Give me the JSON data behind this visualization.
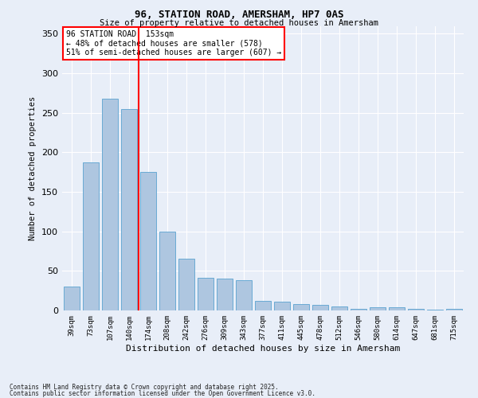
{
  "title1": "96, STATION ROAD, AMERSHAM, HP7 0AS",
  "title2": "Size of property relative to detached houses in Amersham",
  "xlabel": "Distribution of detached houses by size in Amersham",
  "ylabel": "Number of detached properties",
  "categories": [
    "39sqm",
    "73sqm",
    "107sqm",
    "140sqm",
    "174sqm",
    "208sqm",
    "242sqm",
    "276sqm",
    "309sqm",
    "343sqm",
    "377sqm",
    "411sqm",
    "445sqm",
    "478sqm",
    "512sqm",
    "546sqm",
    "580sqm",
    "614sqm",
    "647sqm",
    "681sqm",
    "715sqm"
  ],
  "values": [
    30,
    187,
    268,
    255,
    175,
    100,
    65,
    41,
    40,
    38,
    12,
    11,
    8,
    7,
    5,
    2,
    4,
    4,
    2,
    1,
    2
  ],
  "bar_color": "#aec6e0",
  "bar_edge_color": "#6aaad4",
  "background_color": "#e8eef8",
  "grid_color": "#ffffff",
  "red_line_x": 3.5,
  "annotation_text": "96 STATION ROAD: 153sqm\n← 48% of detached houses are smaller (578)\n51% of semi-detached houses are larger (607) →",
  "footer1": "Contains HM Land Registry data © Crown copyright and database right 2025.",
  "footer2": "Contains public sector information licensed under the Open Government Licence v3.0.",
  "ylim": [
    0,
    360
  ],
  "yticks": [
    0,
    50,
    100,
    150,
    200,
    250,
    300,
    350
  ]
}
